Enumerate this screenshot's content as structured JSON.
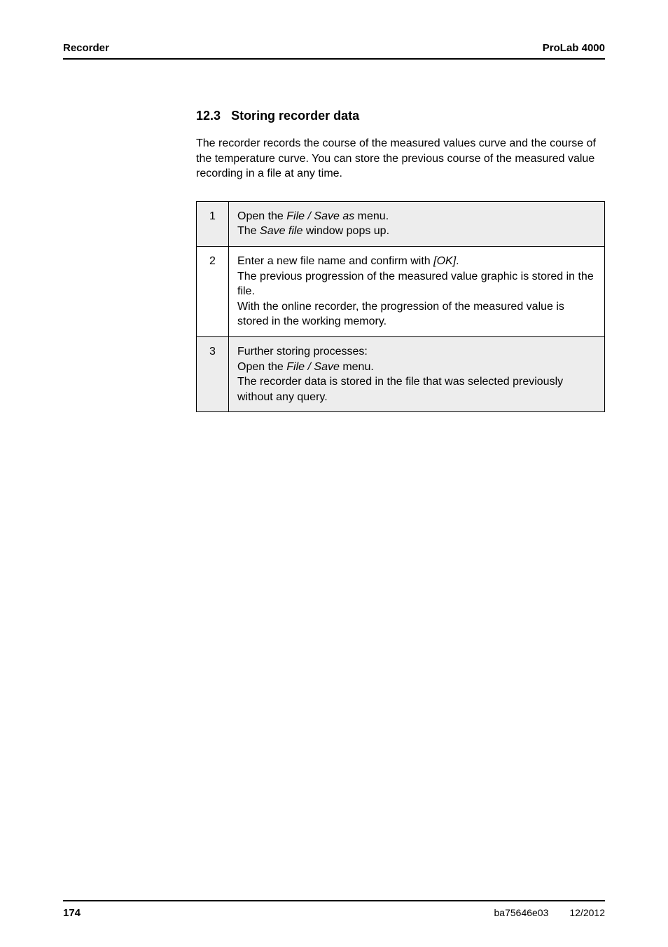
{
  "header": {
    "left": "Recorder",
    "right": "ProLab 4000"
  },
  "section": {
    "number": "12.3",
    "title": "Storing recorder data"
  },
  "intro": "The recorder records the course of the measured values curve and the course of the temperature curve. You can store the previous course of the measured value recording in a file at any time.",
  "steps": [
    {
      "num": "1",
      "shaded": true,
      "lines": [
        {
          "pre": "Open the ",
          "italic": "File / Save as",
          "post": " menu."
        },
        {
          "pre": "The ",
          "italic": "Save file",
          "post": " window pops up."
        }
      ]
    },
    {
      "num": "2",
      "shaded": false,
      "lines": [
        {
          "pre": "Enter a new file name and confirm with ",
          "italic": "[OK]",
          "post": "."
        },
        {
          "pre": "The previous progression of the measured value graphic is stored in the file.",
          "italic": "",
          "post": ""
        },
        {
          "pre": "With the online recorder, the progression of the measured value is stored in the working memory.",
          "italic": "",
          "post": ""
        }
      ]
    },
    {
      "num": "3",
      "shaded": true,
      "lines": [
        {
          "pre": "Further storing processes:",
          "italic": "",
          "post": ""
        },
        {
          "pre": "Open the ",
          "italic": "File / Save",
          "post": " menu."
        },
        {
          "pre": "The recorder data is stored in the file that was selected previously without any query.",
          "italic": "",
          "post": ""
        }
      ]
    }
  ],
  "footer": {
    "page": "174",
    "doc": "ba75646e03",
    "date": "12/2012"
  }
}
